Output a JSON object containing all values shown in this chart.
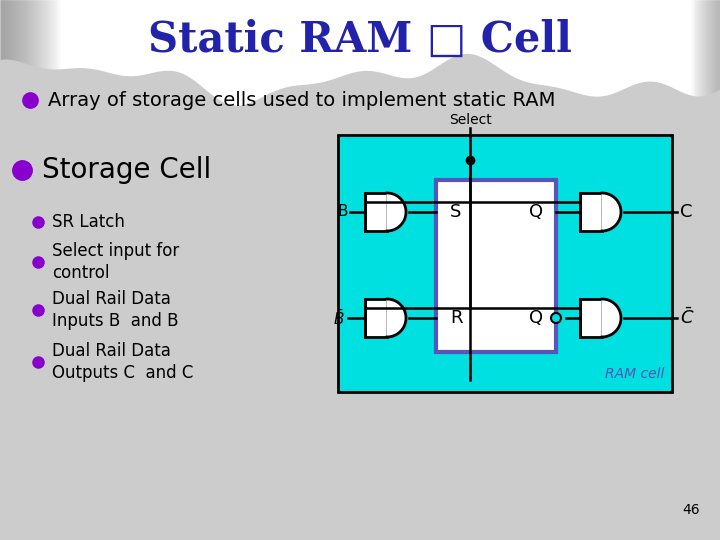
{
  "title": "Static RAM □ Cell",
  "title_color": "#2222aa",
  "bullet1": "Array of storage cells used to implement static RAM",
  "bullet2": "Storage Cell",
  "sub_bullets": [
    "SR Latch",
    "Select input for\ncontrol",
    "Dual Rail Data\nInputs B  and B",
    "Dual Rail Data\nOutputs C  and C"
  ],
  "cyan_box_color": "#00e0e0",
  "blue_box_color": "#5555bb",
  "bullet_color": "#8800cc",
  "text_color": "#000000",
  "page_num": "46"
}
